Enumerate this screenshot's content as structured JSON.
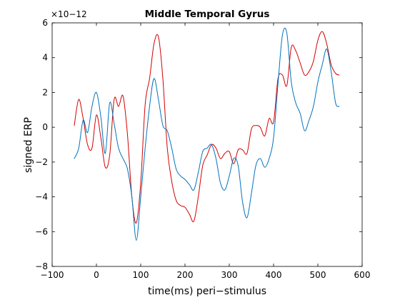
{
  "chart_data": {
    "type": "line",
    "title": "Middle Temporal Gyrus",
    "xlabel": "time(ms) peri−stimulus",
    "ylabel": "signed ERP",
    "y_exponent_label": "×10−12",
    "xlim": [
      -100,
      600
    ],
    "ylim": [
      -8,
      6
    ],
    "x_ticks": [
      -100,
      0,
      100,
      200,
      300,
      400,
      500,
      600
    ],
    "x_tick_labels": [
      "−100",
      "0",
      "100",
      "200",
      "300",
      "400",
      "500",
      "600"
    ],
    "y_ticks": [
      -8,
      -6,
      -4,
      -2,
      0,
      2,
      4,
      6
    ],
    "y_tick_labels": [
      "−8",
      "−6",
      "−4",
      "−2",
      "0",
      "2",
      "4",
      "6"
    ],
    "grid": false,
    "legend": "none",
    "series": [
      {
        "color": "#d40000",
        "x": [
          -50,
          -40,
          -30,
          -20,
          -10,
          0,
          10,
          20,
          30,
          40,
          50,
          60,
          70,
          80,
          90,
          100,
          110,
          120,
          130,
          140,
          150,
          160,
          170,
          180,
          190,
          200,
          210,
          220,
          230,
          240,
          250,
          260,
          270,
          280,
          290,
          300,
          310,
          320,
          330,
          340,
          350,
          360,
          370,
          380,
          390,
          400,
          410,
          420,
          430,
          440,
          450,
          460,
          470,
          480,
          490,
          500,
          510,
          520,
          530,
          540,
          548
        ],
        "y": [
          0.1,
          1.6,
          0.5,
          -1.0,
          -1.2,
          0.7,
          -0.6,
          -2.3,
          -1.6,
          1.6,
          1.2,
          1.8,
          -0.4,
          -4.0,
          -5.5,
          -3.2,
          1.3,
          2.8,
          4.8,
          5.2,
          2.8,
          -1.2,
          -3.1,
          -4.2,
          -4.5,
          -4.6,
          -5.0,
          -5.4,
          -4.0,
          -2.2,
          -1.6,
          -1.0,
          -1.2,
          -1.8,
          -1.5,
          -1.4,
          -2.1,
          -1.3,
          -1.3,
          -1.5,
          -0.1,
          0.1,
          0.0,
          -0.5,
          0.5,
          0.3,
          2.8,
          3.0,
          2.4,
          4.6,
          4.4,
          3.7,
          3.0,
          3.2,
          3.8,
          5.0,
          5.5,
          4.8,
          3.6,
          3.1,
          3.0
        ]
      },
      {
        "color": "#0072bd",
        "x": [
          -50,
          -40,
          -30,
          -20,
          -10,
          0,
          10,
          20,
          30,
          40,
          50,
          60,
          70,
          80,
          90,
          100,
          110,
          120,
          130,
          140,
          150,
          160,
          170,
          180,
          190,
          200,
          210,
          220,
          230,
          240,
          250,
          260,
          270,
          280,
          290,
          300,
          310,
          320,
          330,
          340,
          350,
          360,
          370,
          380,
          390,
          400,
          410,
          420,
          430,
          440,
          450,
          460,
          470,
          480,
          490,
          500,
          510,
          520,
          530,
          540,
          548
        ],
        "y": [
          -1.8,
          -1.2,
          0.4,
          -0.3,
          1.2,
          2.0,
          0.6,
          -1.5,
          1.4,
          0.2,
          -1.2,
          -1.8,
          -2.4,
          -4.0,
          -6.5,
          -4.0,
          -1.2,
          1.2,
          2.8,
          1.6,
          0.1,
          -0.2,
          -1.2,
          -2.4,
          -2.8,
          -3.0,
          -3.3,
          -3.6,
          -2.6,
          -1.4,
          -1.2,
          -1.0,
          -1.8,
          -3.2,
          -3.6,
          -2.8,
          -1.8,
          -2.2,
          -4.3,
          -5.2,
          -3.8,
          -2.2,
          -1.8,
          -2.3,
          -1.8,
          -0.6,
          2.5,
          5.3,
          5.4,
          2.6,
          1.4,
          0.8,
          -0.2,
          0.4,
          1.2,
          2.6,
          3.6,
          4.5,
          3.2,
          1.4,
          1.2
        ]
      }
    ]
  }
}
